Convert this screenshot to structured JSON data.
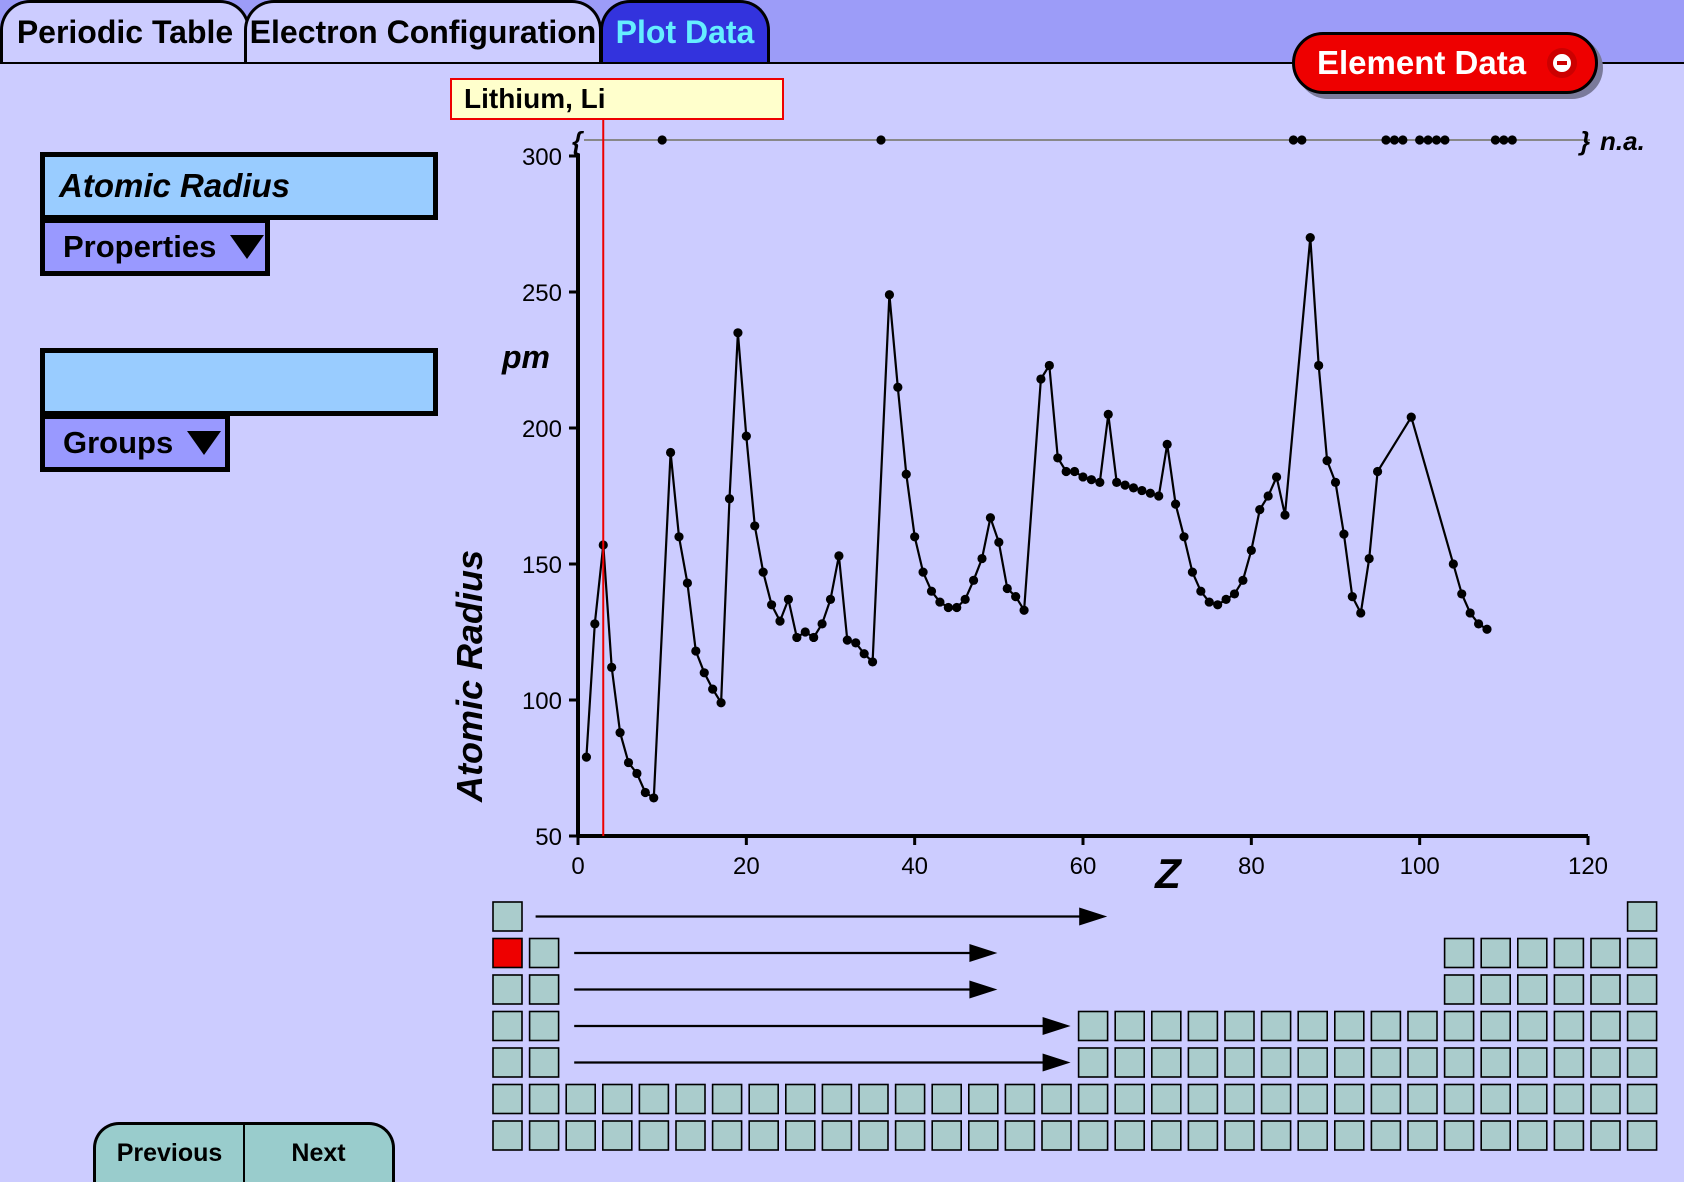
{
  "tabs": [
    {
      "label": "Periodic Table",
      "active": false
    },
    {
      "label": "Electron Configuration",
      "active": false
    },
    {
      "label": "Plot Data",
      "active": true
    }
  ],
  "element_data_button": {
    "label": "Element Data"
  },
  "left_panel": {
    "property_field": "Atomic Radius",
    "properties_dropdown": "Properties",
    "group_field": "",
    "groups_dropdown": "Groups"
  },
  "nav": {
    "previous": "Previous",
    "next": "Next"
  },
  "selected_element": {
    "label": "Lithium, Li",
    "z": 3
  },
  "colors": {
    "accent": "#ee0000",
    "tab_active_bg": "#3333dd",
    "tab_active_text": "#66eeff",
    "page_bg": "#ccccff",
    "cell": "#aacccc"
  },
  "chart_data": {
    "type": "line",
    "xlabel": "Z",
    "ylabel": "Atomic Radius",
    "unit_label": "pm",
    "na_label": "n.a.",
    "na_open": "{",
    "na_close": "}",
    "xlim": [
      0,
      120
    ],
    "ylim": [
      50,
      300
    ],
    "x_ticks": [
      0,
      20,
      40,
      60,
      80,
      100,
      120
    ],
    "y_ticks": [
      50,
      100,
      150,
      200,
      250,
      300
    ],
    "series": [
      {
        "x": [
          1,
          2,
          3,
          4,
          5,
          6,
          7,
          8,
          9,
          11,
          12,
          13,
          14,
          15,
          16,
          17,
          18,
          19,
          20,
          21,
          22,
          23,
          24,
          25,
          26,
          27,
          28,
          29,
          30,
          31,
          32,
          33,
          34,
          35,
          37,
          38,
          39,
          40,
          41,
          42,
          43,
          44,
          45,
          46,
          47,
          48,
          49,
          50,
          51,
          52,
          53,
          55,
          56,
          57,
          58,
          59,
          60,
          61,
          62,
          63,
          64,
          65,
          66,
          67,
          68,
          69,
          70,
          71,
          72,
          73,
          74,
          75,
          76,
          77,
          78,
          79,
          80,
          81,
          82,
          83,
          84,
          87,
          88,
          89,
          90,
          91,
          92,
          93,
          94,
          95,
          99,
          104,
          105,
          106,
          107,
          108
        ],
        "y": [
          79,
          128,
          157,
          112,
          88,
          77,
          73,
          66,
          64,
          191,
          160,
          143,
          118,
          110,
          104,
          99,
          174,
          235,
          197,
          164,
          147,
          135,
          129,
          137,
          123,
          125,
          123,
          128,
          137,
          153,
          122,
          121,
          117,
          114,
          249,
          215,
          183,
          160,
          147,
          140,
          136,
          134,
          134,
          137,
          144,
          152,
          167,
          158,
          141,
          138,
          133,
          218,
          223,
          189,
          184,
          184,
          182,
          181,
          180,
          205,
          180,
          179,
          178,
          177,
          176,
          175,
          194,
          172,
          160,
          147,
          140,
          136,
          135,
          137,
          139,
          144,
          155,
          170,
          175,
          182,
          168,
          270,
          223,
          188,
          180,
          161,
          138,
          132,
          152,
          184,
          204,
          150,
          139,
          132,
          128,
          126
        ]
      }
    ],
    "na_z": [
      10,
      36,
      85,
      86,
      96,
      97,
      98,
      100,
      101,
      102,
      103,
      109,
      110,
      111
    ]
  }
}
